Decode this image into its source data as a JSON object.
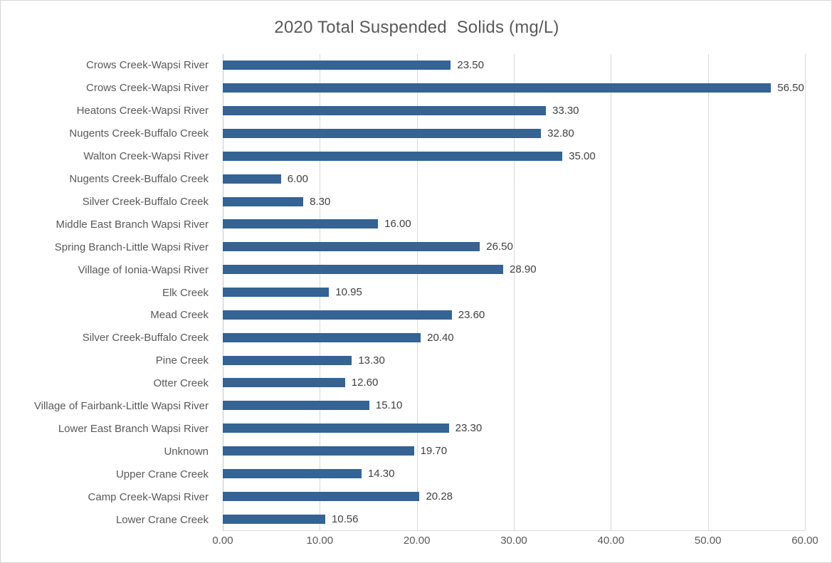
{
  "chart_data": {
    "type": "bar",
    "orientation": "horizontal",
    "title": "2020 Total Suspended  Solids (mg/L)",
    "categories": [
      "Crows Creek-Wapsi River",
      "Crows Creek-Wapsi River",
      "Heatons Creek-Wapsi River",
      "Nugents Creek-Buffalo Creek",
      "Walton Creek-Wapsi River",
      "Nugents Creek-Buffalo Creek",
      "Silver Creek-Buffalo Creek",
      "Middle East Branch Wapsi River",
      "Spring Branch-Little Wapsi River",
      "Village of Ionia-Wapsi River",
      "Elk Creek",
      "Mead Creek",
      "Silver Creek-Buffalo Creek",
      "Pine Creek",
      "Otter Creek",
      "Village of Fairbank-Little Wapsi River",
      "Lower East Branch Wapsi River",
      "Unknown",
      "Upper Crane Creek",
      "Camp Creek-Wapsi River",
      "Lower Crane Creek"
    ],
    "values": [
      23.5,
      56.5,
      33.3,
      32.8,
      35.0,
      6.0,
      8.3,
      16.0,
      26.5,
      28.9,
      10.95,
      23.6,
      20.4,
      13.3,
      12.6,
      15.1,
      23.3,
      19.7,
      14.3,
      20.28,
      10.56
    ],
    "value_labels": [
      "23.50",
      "56.50",
      "33.30",
      "32.80",
      "35.00",
      "6.00",
      "8.30",
      "16.00",
      "26.50",
      "28.90",
      "10.95",
      "23.60",
      "20.40",
      "13.30",
      "12.60",
      "15.10",
      "23.30",
      "19.70",
      "14.30",
      "20.28",
      "10.56"
    ],
    "x_ticks": [
      "0.00",
      "10.00",
      "20.00",
      "30.00",
      "40.00",
      "50.00",
      "60.00"
    ],
    "xlim": [
      0,
      60
    ],
    "xlabel": "",
    "ylabel": "",
    "grid": true,
    "legend": false,
    "colors": {
      "bar": "#346394",
      "gridline": "#d9d9d9",
      "title_text": "#595959",
      "axis_text": "#595959",
      "value_text": "#404040",
      "chart_border": "#d7d7d7",
      "background": "#ffffff"
    }
  }
}
